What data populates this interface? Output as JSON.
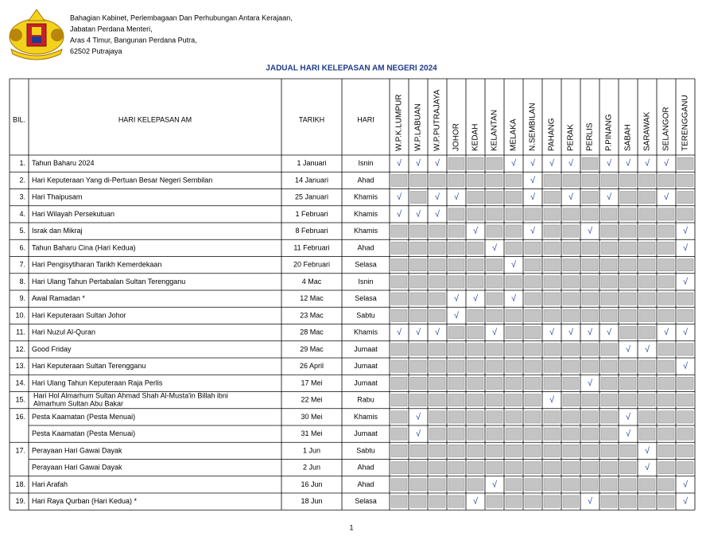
{
  "header": {
    "address": [
      "Bahagian Kabinet, Perlembagaan Dan Perhubungan Antara  Kerajaan,",
      "Jabatan Perdana Menteri,",
      "Aras 4 Timur, Bangunan Perdana Putra,",
      "62502 Putrajaya"
    ],
    "title": "JADUAL HARI KELEPASAN AM NEGERI 2024"
  },
  "table": {
    "columns": {
      "bil": "BIL.",
      "name": "HARI KELEPASAN AM",
      "date": "TARIKH",
      "day": "HARI"
    },
    "states": [
      "W.P.K.LUMPUR",
      "W.P.LABUAN",
      "W.P.PUTRAJAYA",
      "JOHOR",
      "KEDAH",
      "KELANTAN",
      "MELAKA",
      "N.SEMBILAN",
      "PAHANG",
      "PERAK",
      "PERLIS",
      "P.PINANG",
      "SABAH",
      "SARAWAK",
      "SELANGOR",
      "TERENGGANU"
    ],
    "rows": [
      {
        "bil": "1.",
        "entries": [
          {
            "name": "Tahun Baharu 2024",
            "date": "1 Januari",
            "day": "Isnin",
            "marks": [
              "√",
              "√",
              "√",
              null,
              null,
              null,
              "√",
              "√",
              "√",
              "√",
              null,
              "√",
              "√",
              "√",
              "√",
              null
            ]
          }
        ]
      },
      {
        "bil": "2.",
        "entries": [
          {
            "name": "Hari Keputeraan Yang di-Pertuan Besar Negeri Sembilan",
            "date": "14 Januari",
            "day": "Ahad",
            "marks": [
              null,
              null,
              null,
              null,
              null,
              null,
              null,
              "√",
              null,
              null,
              null,
              null,
              null,
              null,
              null,
              null
            ]
          }
        ]
      },
      {
        "bil": "3.",
        "entries": [
          {
            "name": "Hari Thaipusam",
            "date": "25 Januari",
            "day": "Khamis",
            "marks": [
              "√",
              null,
              "√",
              "√",
              null,
              null,
              null,
              "√",
              null,
              "√",
              null,
              "√",
              null,
              null,
              "√",
              null
            ]
          }
        ]
      },
      {
        "bil": "4.",
        "entries": [
          {
            "name": "Hari Wilayah Persekutuan",
            "date": "1 Februari",
            "day": "Khamis",
            "marks": [
              "√",
              "√",
              "√",
              null,
              null,
              null,
              null,
              null,
              null,
              null,
              null,
              null,
              null,
              null,
              null,
              null
            ]
          }
        ]
      },
      {
        "bil": "5.",
        "entries": [
          {
            "name": "Israk dan Mikraj",
            "date": "8 Februari",
            "day": "Khamis",
            "marks": [
              null,
              null,
              null,
              null,
              "√",
              null,
              null,
              "√",
              null,
              null,
              "√",
              null,
              null,
              null,
              null,
              "√"
            ]
          }
        ]
      },
      {
        "bil": "6.",
        "entries": [
          {
            "name": "Tahun Baharu Cina (Hari Kedua)",
            "date": "11 Februari",
            "day": "Ahad",
            "marks": [
              null,
              null,
              null,
              null,
              null,
              "√",
              null,
              null,
              null,
              null,
              null,
              null,
              null,
              null,
              null,
              "√"
            ]
          }
        ]
      },
      {
        "bil": "7.",
        "entries": [
          {
            "name": "Hari Pengisytiharan Tarikh Kemerdekaan",
            "date": "20 Februari",
            "day": "Selasa",
            "marks": [
              null,
              null,
              null,
              null,
              null,
              null,
              "√",
              null,
              null,
              null,
              null,
              null,
              null,
              null,
              null,
              null
            ]
          }
        ]
      },
      {
        "bil": "8.",
        "entries": [
          {
            "name": "Hari Ulang Tahun Pertabalan Sultan Terengganu",
            "date": "4 Mac",
            "day": "Isnin",
            "marks": [
              null,
              null,
              null,
              null,
              null,
              null,
              null,
              null,
              null,
              null,
              null,
              null,
              null,
              null,
              null,
              "√"
            ]
          }
        ]
      },
      {
        "bil": "9.",
        "entries": [
          {
            "name": "Awal Ramadan *",
            "date": "12 Mac",
            "day": "Selasa",
            "marks": [
              null,
              null,
              null,
              "√",
              "√",
              null,
              "√",
              null,
              null,
              null,
              null,
              null,
              null,
              null,
              null,
              null
            ]
          }
        ]
      },
      {
        "bil": "10.",
        "entries": [
          {
            "name": "Hari Keputeraan Sultan Johor",
            "date": "23 Mac",
            "day": "Sabtu",
            "marks": [
              null,
              null,
              null,
              "√",
              null,
              null,
              null,
              null,
              null,
              null,
              null,
              null,
              null,
              null,
              null,
              null
            ]
          }
        ]
      },
      {
        "bil": "11.",
        "entries": [
          {
            "name": "Hari Nuzul Al-Quran",
            "date": "28 Mac",
            "day": "Khamis",
            "marks": [
              "√",
              "√",
              "√",
              null,
              null,
              "√",
              null,
              null,
              "√",
              "√",
              "√",
              "√",
              null,
              null,
              "√",
              "√"
            ]
          }
        ]
      },
      {
        "bil": "12.",
        "entries": [
          {
            "name": "Good Friday",
            "date": "29 Mac",
            "day": "Jumaat",
            "marks": [
              null,
              null,
              null,
              null,
              null,
              null,
              null,
              null,
              null,
              null,
              null,
              null,
              "√",
              "√",
              null,
              null
            ]
          }
        ]
      },
      {
        "bil": "13.",
        "entries": [
          {
            "name": "Hari Keputeraan Sultan Terengganu",
            "date": "26 April",
            "day": "Jumaat",
            "marks": [
              null,
              null,
              null,
              null,
              null,
              null,
              null,
              null,
              null,
              null,
              null,
              null,
              null,
              null,
              null,
              "√"
            ]
          }
        ]
      },
      {
        "bil": "14.",
        "entries": [
          {
            "name": "Hari Ulang Tahun Keputeraan Raja Perlis",
            "date": "17 Mei",
            "day": "Jumaat",
            "marks": [
              null,
              null,
              null,
              null,
              null,
              null,
              null,
              null,
              null,
              null,
              "√",
              null,
              null,
              null,
              null,
              null
            ]
          }
        ]
      },
      {
        "bil": "15.",
        "entries": [
          {
            "name": [
              "Hari Hol Almarhum Sultan Ahmad Shah Al-Musta'in Billah ibni",
              "Almarhum Sultan Abu Bakar"
            ],
            "date": "22 Mei",
            "day": "Rabu",
            "marks": [
              null,
              null,
              null,
              null,
              null,
              null,
              null,
              null,
              "√",
              null,
              null,
              null,
              null,
              null,
              null,
              null
            ]
          }
        ]
      },
      {
        "bil": "16.",
        "entries": [
          {
            "name": "Pesta Kaamatan (Pesta Menuai)",
            "date": "30 Mei",
            "day": "Khamis",
            "marks": [
              null,
              "√",
              null,
              null,
              null,
              null,
              null,
              null,
              null,
              null,
              null,
              null,
              "√",
              null,
              null,
              null
            ]
          },
          {
            "name": "Pesta Kaamatan (Pesta Menuai)",
            "date": "31 Mei",
            "day": "Jumaat",
            "marks": [
              null,
              "√",
              null,
              null,
              null,
              null,
              null,
              null,
              null,
              null,
              null,
              null,
              "√",
              null,
              null,
              null
            ]
          }
        ]
      },
      {
        "bil": "17.",
        "entries": [
          {
            "name": "Perayaan Hari Gawai Dayak",
            "date": "1 Jun",
            "day": "Sabtu",
            "marks": [
              null,
              null,
              null,
              null,
              null,
              null,
              null,
              null,
              null,
              null,
              null,
              null,
              null,
              "√",
              null,
              null
            ]
          },
          {
            "name": "Perayaan Hari Gawai Dayak",
            "date": "2 Jun",
            "day": "Ahad",
            "marks": [
              null,
              null,
              null,
              null,
              null,
              null,
              null,
              null,
              null,
              null,
              null,
              null,
              null,
              "√",
              null,
              null
            ]
          }
        ]
      },
      {
        "bil": "18.",
        "entries": [
          {
            "name": "Hari Arafah",
            "date": "16 Jun",
            "day": "Ahad",
            "marks": [
              null,
              null,
              null,
              null,
              null,
              "√",
              null,
              null,
              null,
              null,
              null,
              null,
              null,
              null,
              null,
              "√"
            ]
          }
        ]
      },
      {
        "bil": "19.",
        "entries": [
          {
            "name": "Hari Raya Qurban (Hari Kedua) *",
            "date": "18 Jun",
            "day": "Selasa",
            "marks": [
              null,
              null,
              null,
              null,
              "√",
              null,
              null,
              null,
              null,
              null,
              "√",
              null,
              null,
              null,
              null,
              "√"
            ]
          }
        ]
      }
    ]
  },
  "footer": {
    "page": "1"
  }
}
